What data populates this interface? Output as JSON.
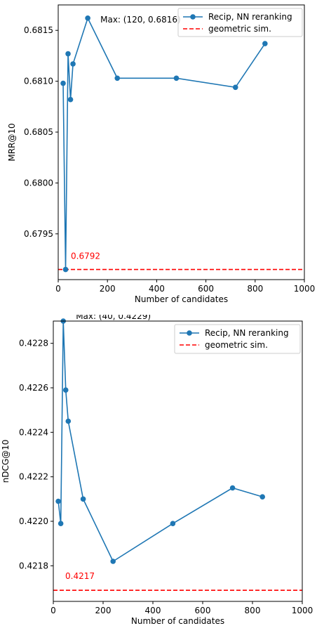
{
  "chart_data": [
    {
      "type": "line",
      "xlabel": "Number of candidates",
      "ylabel": "MRR@10",
      "xlim": [
        0,
        1000
      ],
      "ylim": [
        0.67905,
        0.68175
      ],
      "xticks": [
        0,
        200,
        400,
        600,
        800,
        1000
      ],
      "xtick_labels": [
        "0",
        "200",
        "400",
        "600",
        "800",
        "1000"
      ],
      "yticks": [
        0.6795,
        0.68,
        0.6805,
        0.681,
        0.6815
      ],
      "ytick_labels": [
        "0.6795",
        "0.6800",
        "0.6805",
        "0.6810",
        "0.6815"
      ],
      "series": [
        {
          "name": "Recip, NN reranking",
          "color": "#1f77b4",
          "marker": "circle",
          "x": [
            20,
            30,
            40,
            50,
            60,
            120,
            240,
            480,
            720,
            840
          ],
          "y": [
            0.68098,
            0.67915,
            0.68127,
            0.68082,
            0.68117,
            0.68162,
            0.68103,
            0.68103,
            0.68094,
            0.68137
          ]
        },
        {
          "name": "geometric sim.",
          "color": "#ff0000",
          "style": "dashed",
          "y": 0.67915
        }
      ],
      "annotations": [
        {
          "text": "Max: (120, 0.6816)",
          "x": 120,
          "y": 0.68162
        },
        {
          "text": "0.6792",
          "x": 30,
          "y": 0.67915,
          "color": "#ff0000"
        }
      ],
      "legend": {
        "placement": "top-right"
      },
      "grid": false
    },
    {
      "type": "line",
      "xlabel": "Number of candidates",
      "ylabel": "nDCG@10",
      "xlim": [
        0,
        1000
      ],
      "ylim": [
        0.42164,
        0.4229
      ],
      "xticks": [
        0,
        200,
        400,
        600,
        800,
        1000
      ],
      "xtick_labels": [
        "0",
        "200",
        "400",
        "600",
        "800",
        "1000"
      ],
      "yticks": [
        0.4218,
        0.422,
        0.4222,
        0.4224,
        0.4226,
        0.4228
      ],
      "ytick_labels": [
        "0.4218",
        "0.4220",
        "0.4222",
        "0.4224",
        "0.4226",
        "0.4228"
      ],
      "series": [
        {
          "name": "Recip, NN reranking",
          "color": "#1f77b4",
          "marker": "circle",
          "x": [
            20,
            30,
            40,
            50,
            60,
            120,
            240,
            480,
            720,
            840
          ],
          "y": [
            0.42209,
            0.42199,
            0.4229,
            0.42259,
            0.42245,
            0.4221,
            0.42182,
            0.42199,
            0.42215,
            0.42211
          ]
        },
        {
          "name": "geometric sim.",
          "color": "#ff0000",
          "style": "dashed",
          "y": 0.42169
        }
      ],
      "annotations": [
        {
          "text": "Max: (40, 0.4229)",
          "x": 40,
          "y": 0.4229
        },
        {
          "text": "0.4217",
          "x": 40,
          "y": 0.42169,
          "color": "#ff0000"
        }
      ],
      "legend": {
        "placement": "top-right"
      },
      "grid": false
    }
  ]
}
